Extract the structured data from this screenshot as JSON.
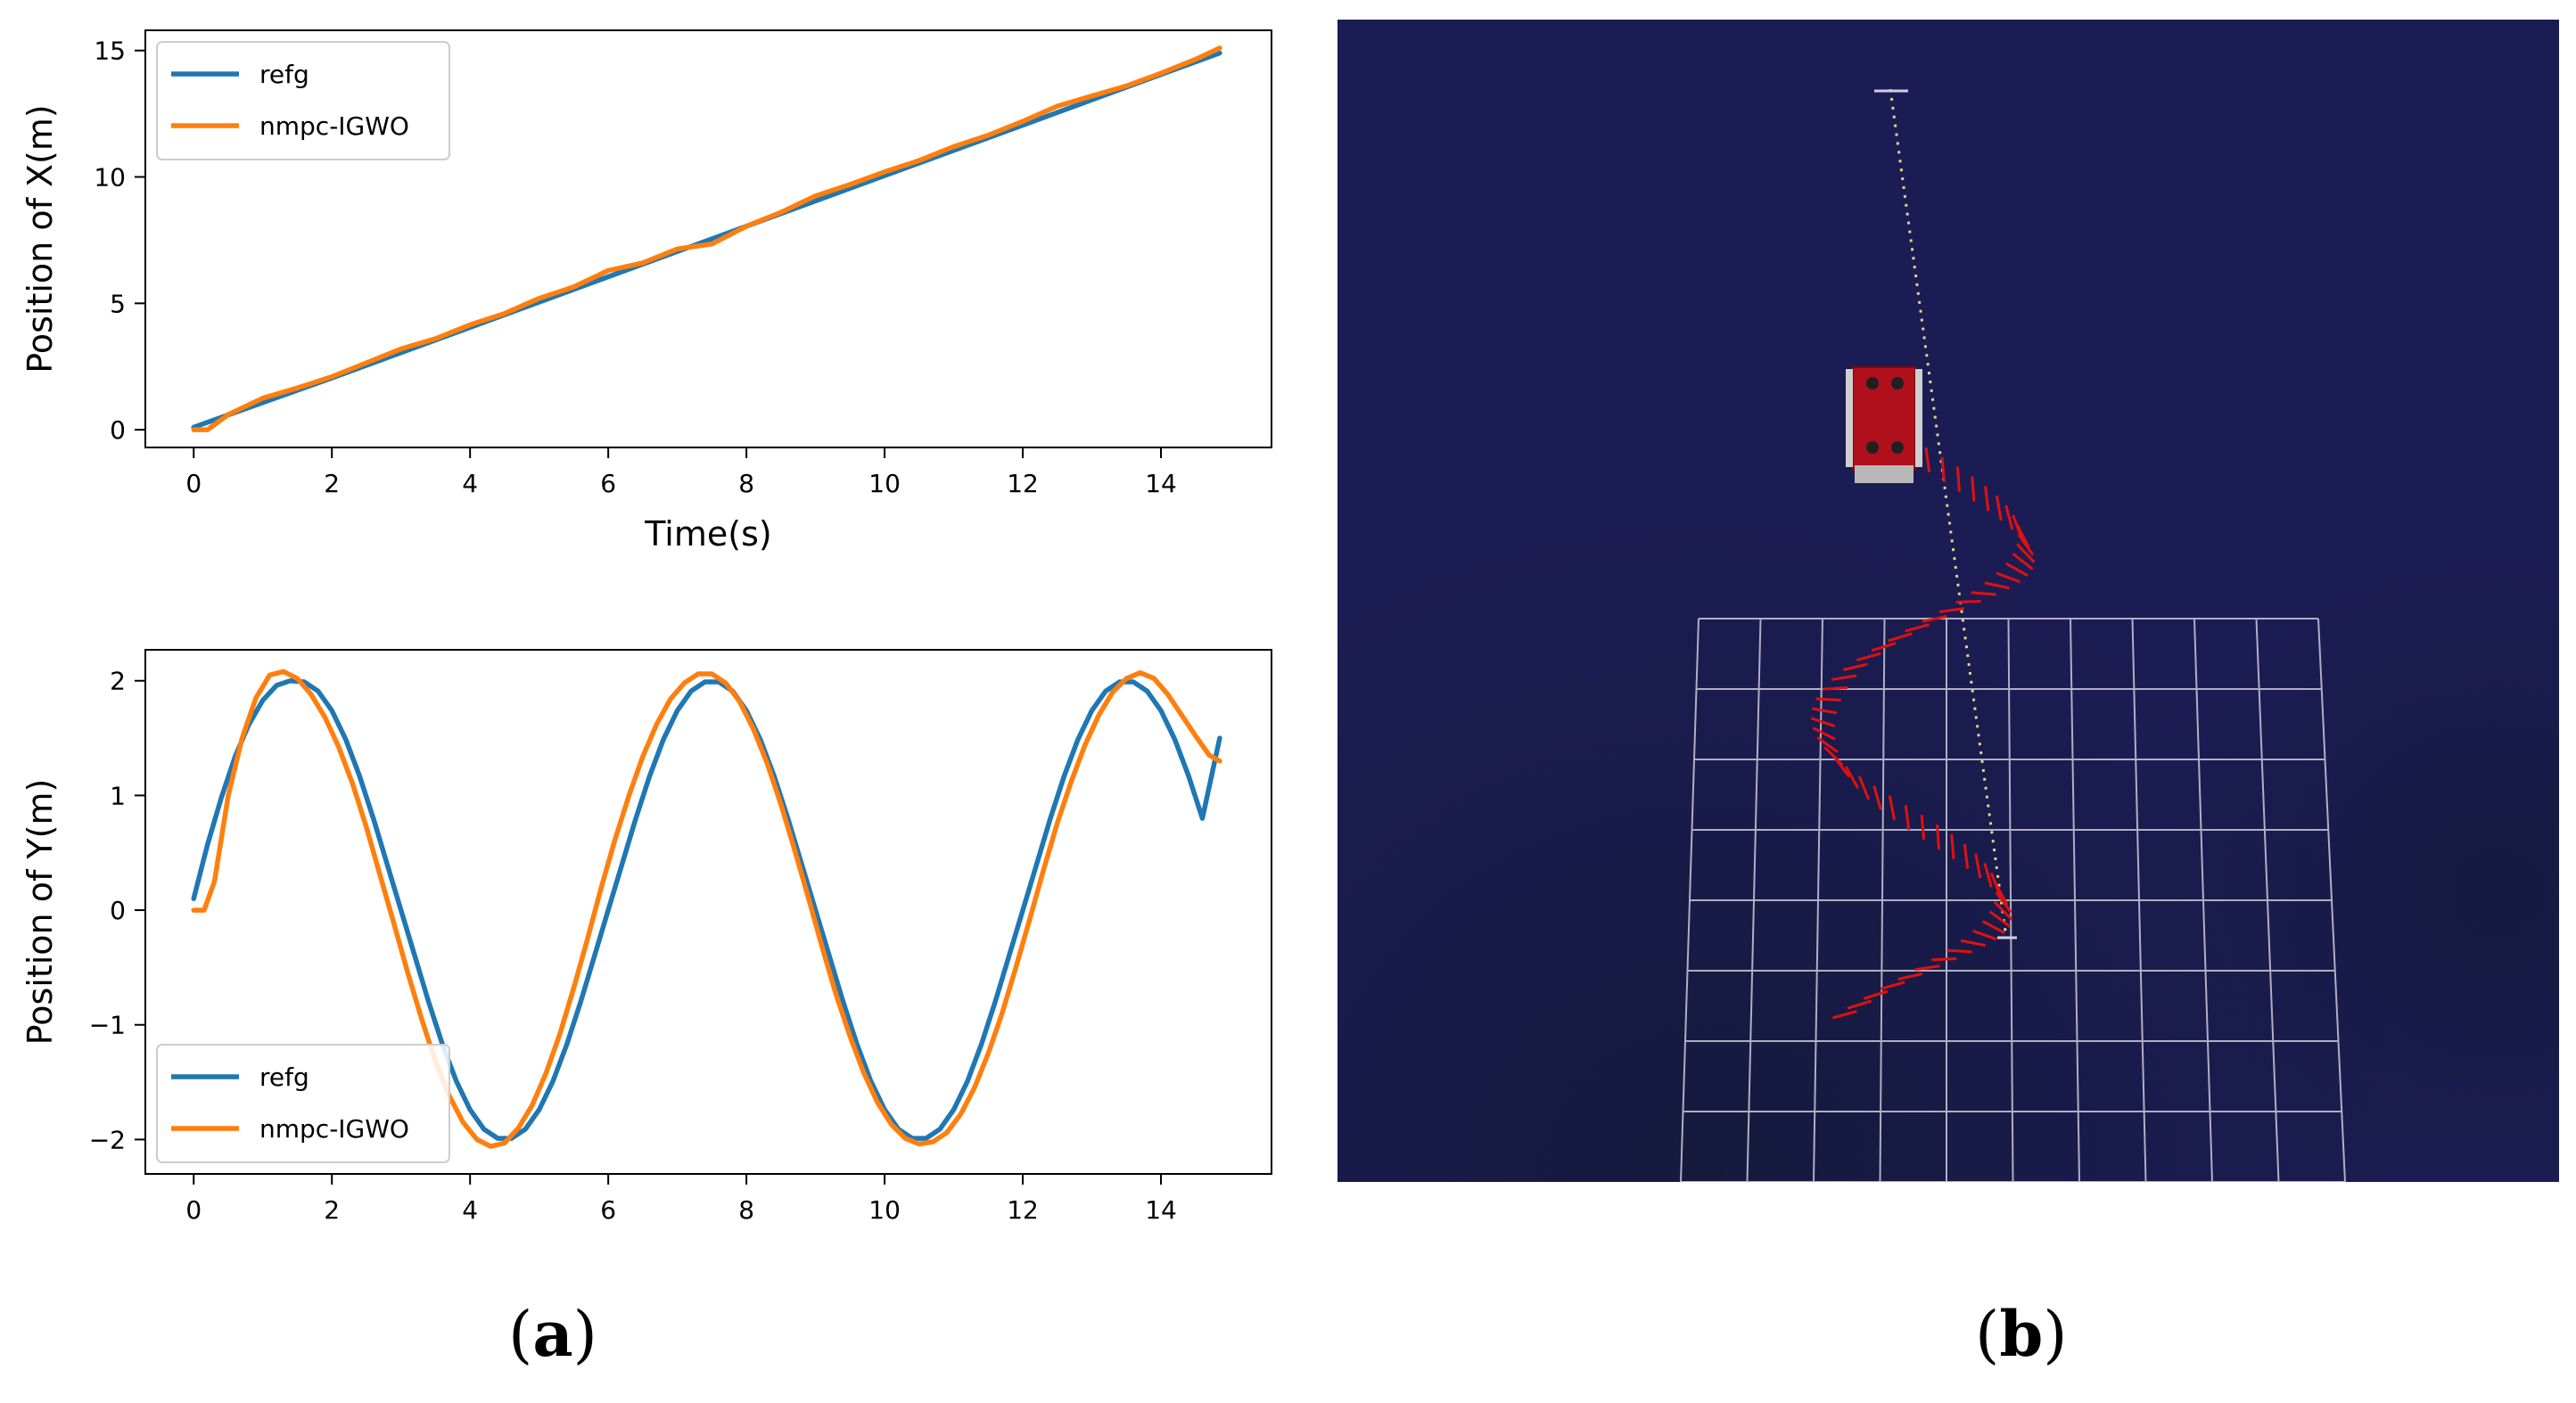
{
  "chart_data": [
    {
      "type": "line",
      "xlabel": "Time(s)",
      "ylabel": "Position of X(m)",
      "xlim": [
        -0.7,
        15.6
      ],
      "ylim": [
        -0.7,
        15.8
      ],
      "xticks": [
        "0",
        "2",
        "4",
        "6",
        "8",
        "10",
        "12",
        "14"
      ],
      "yticks": [
        "0",
        "5",
        "10",
        "15"
      ],
      "legend_position": "top-left",
      "grid": false,
      "series": [
        {
          "name": "refg",
          "color": "#1f77b4",
          "x": [
            0,
            2,
            4,
            6,
            8,
            10,
            12,
            14,
            14.85
          ],
          "y": [
            0.1,
            2.05,
            4.05,
            6.05,
            8.05,
            10.05,
            12.05,
            14.05,
            14.9
          ]
        },
        {
          "name": "nmpc-IGWO",
          "color": "#ff7f0e",
          "x": [
            0,
            0.2,
            0.5,
            1.0,
            1.5,
            2.0,
            2.5,
            3.0,
            3.5,
            4.0,
            4.5,
            5.0,
            5.5,
            6.0,
            6.5,
            7.0,
            7.5,
            8.0,
            8.5,
            9.0,
            9.5,
            10.0,
            10.5,
            11.0,
            11.5,
            12.0,
            12.5,
            13.0,
            13.5,
            14.0,
            14.5,
            14.85
          ],
          "y": [
            0.0,
            0.0,
            0.6,
            1.25,
            1.65,
            2.1,
            2.65,
            3.2,
            3.6,
            4.15,
            4.6,
            5.2,
            5.65,
            6.3,
            6.6,
            7.15,
            7.35,
            8.05,
            8.6,
            9.25,
            9.7,
            10.2,
            10.65,
            11.2,
            11.65,
            12.2,
            12.8,
            13.2,
            13.6,
            14.1,
            14.65,
            15.1
          ]
        }
      ]
    },
    {
      "type": "line",
      "xlabel": "Time(s)",
      "ylabel": "Position of Y(m)",
      "xlim": [
        -0.7,
        15.6
      ],
      "ylim": [
        -2.3,
        2.27
      ],
      "xticks": [
        "0",
        "2",
        "4",
        "6",
        "8",
        "10",
        "12",
        "14"
      ],
      "yticks": [
        "2",
        "1",
        "0",
        "−1",
        "−2"
      ],
      "legend_position": "bottom-left",
      "grid": false,
      "series": [
        {
          "name": "refg",
          "color": "#1f77b4",
          "x": [
            0,
            0.2,
            0.4,
            0.6,
            0.8,
            1.0,
            1.2,
            1.4,
            1.6,
            1.8,
            2.0,
            2.2,
            2.4,
            2.6,
            2.8,
            3.0,
            3.2,
            3.4,
            3.6,
            3.8,
            4.0,
            4.2,
            4.4,
            4.6,
            4.8,
            5.0,
            5.2,
            5.4,
            5.6,
            5.8,
            6.0,
            6.2,
            6.4,
            6.6,
            6.8,
            7.0,
            7.2,
            7.4,
            7.6,
            7.8,
            8.0,
            8.2,
            8.4,
            8.6,
            8.8,
            9.0,
            9.2,
            9.4,
            9.6,
            9.8,
            10.0,
            10.2,
            10.4,
            10.6,
            10.8,
            11.0,
            11.2,
            11.4,
            11.6,
            11.8,
            12.0,
            12.2,
            12.4,
            12.6,
            12.8,
            13.0,
            13.2,
            13.4,
            13.6,
            13.8,
            14.0,
            14.2,
            14.4,
            14.6,
            14.85
          ],
          "y": [
            0.1,
            0.57,
            0.98,
            1.34,
            1.62,
            1.83,
            1.96,
            2.0,
            1.99,
            1.91,
            1.74,
            1.49,
            1.17,
            0.8,
            0.4,
            0.0,
            -0.4,
            -0.8,
            -1.17,
            -1.49,
            -1.74,
            -1.91,
            -1.99,
            -1.99,
            -1.91,
            -1.74,
            -1.49,
            -1.17,
            -0.8,
            -0.4,
            0.0,
            0.4,
            0.8,
            1.17,
            1.49,
            1.74,
            1.91,
            1.99,
            1.99,
            1.91,
            1.74,
            1.49,
            1.17,
            0.8,
            0.4,
            0.0,
            -0.4,
            -0.8,
            -1.17,
            -1.49,
            -1.74,
            -1.91,
            -1.99,
            -1.99,
            -1.91,
            -1.74,
            -1.49,
            -1.17,
            -0.8,
            -0.4,
            0.0,
            0.4,
            0.8,
            1.17,
            1.49,
            1.74,
            1.91,
            1.99,
            1.99,
            1.91,
            1.74,
            1.49,
            1.17,
            0.8,
            1.5
          ]
        },
        {
          "name": "nmpc-IGWO",
          "color": "#ff7f0e",
          "x": [
            0,
            0.15,
            0.3,
            0.5,
            0.7,
            0.9,
            1.1,
            1.3,
            1.5,
            1.7,
            1.9,
            2.1,
            2.3,
            2.5,
            2.7,
            2.9,
            3.1,
            3.3,
            3.5,
            3.7,
            3.9,
            4.1,
            4.3,
            4.5,
            4.7,
            4.9,
            5.1,
            5.3,
            5.5,
            5.7,
            5.9,
            6.1,
            6.3,
            6.5,
            6.7,
            6.9,
            7.1,
            7.3,
            7.5,
            7.7,
            7.9,
            8.1,
            8.3,
            8.5,
            8.7,
            8.9,
            9.1,
            9.3,
            9.5,
            9.7,
            9.9,
            10.1,
            10.3,
            10.5,
            10.7,
            10.9,
            11.1,
            11.3,
            11.5,
            11.7,
            11.9,
            12.1,
            12.3,
            12.5,
            12.7,
            12.9,
            13.1,
            13.3,
            13.5,
            13.7,
            13.9,
            14.1,
            14.3,
            14.5,
            14.7,
            14.85
          ],
          "y": [
            0.0,
            0.0,
            0.25,
            1.0,
            1.5,
            1.85,
            2.05,
            2.08,
            2.02,
            1.88,
            1.68,
            1.42,
            1.1,
            0.72,
            0.3,
            -0.12,
            -0.55,
            -0.95,
            -1.32,
            -1.62,
            -1.85,
            -2.0,
            -2.06,
            -2.03,
            -1.9,
            -1.7,
            -1.42,
            -1.08,
            -0.68,
            -0.25,
            0.2,
            0.62,
            1.0,
            1.34,
            1.62,
            1.84,
            1.98,
            2.06,
            2.06,
            1.98,
            1.82,
            1.58,
            1.28,
            0.92,
            0.52,
            0.1,
            -0.33,
            -0.74,
            -1.1,
            -1.42,
            -1.68,
            -1.87,
            -1.99,
            -2.04,
            -2.02,
            -1.94,
            -1.78,
            -1.55,
            -1.25,
            -0.9,
            -0.5,
            -0.08,
            0.35,
            0.76,
            1.12,
            1.44,
            1.7,
            1.9,
            2.02,
            2.07,
            2.02,
            1.88,
            1.7,
            1.52,
            1.35,
            1.3
          ]
        }
      ]
    }
  ],
  "captions": {
    "a": "a",
    "b": "b"
  }
}
